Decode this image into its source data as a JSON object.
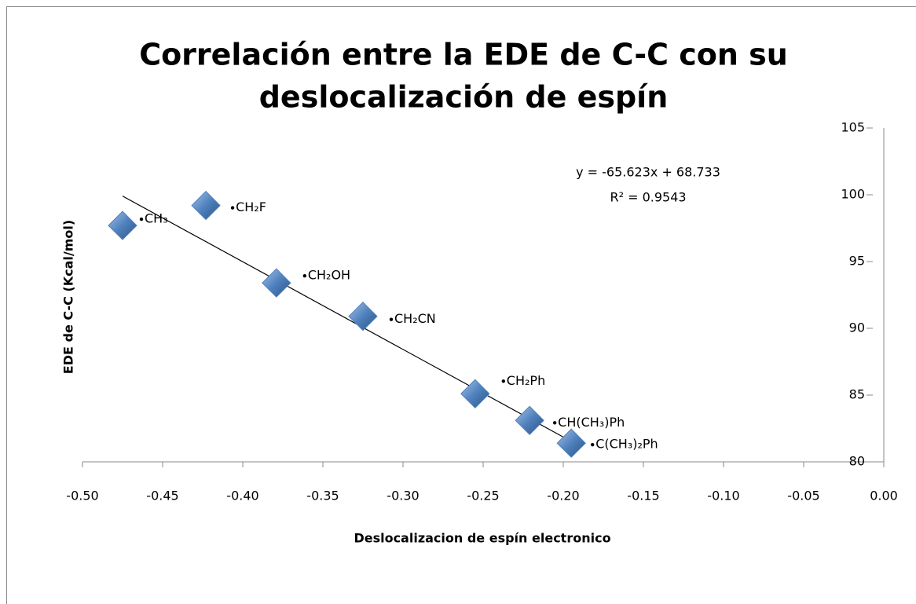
{
  "chart_data": {
    "type": "scatter",
    "title": [
      "Correlación entre la EDE de C-C con su",
      "deslocalización de espín"
    ],
    "x_label": "Deslocalizacion  de espín electronico",
    "y_label": "EDE de C-C (Kcal/mol)",
    "x": [
      -0.475,
      -0.423,
      -0.379,
      -0.325,
      -0.255,
      -0.221,
      -0.195
    ],
    "series": [
      {
        "name": "EDE",
        "color": "#4f81bd",
        "values": [
          97.7,
          99.2,
          93.4,
          90.9,
          85.1,
          83.1,
          81.4
        ]
      }
    ],
    "point_labels": [
      "CH₃",
      "CH₂F",
      "CH₂OH",
      "CH₂CN",
      "CH₂Ph",
      "CH(CH₃)Ph",
      "C(CH₃)₂Ph"
    ],
    "xlim": [
      -0.5,
      0
    ],
    "xticks": [
      {
        "value": -0.5,
        "label": "-0.50"
      },
      {
        "value": -0.45,
        "label": "-0.45"
      },
      {
        "value": -0.4,
        "label": "-0.40"
      },
      {
        "value": -0.35,
        "label": "-0.35"
      },
      {
        "value": -0.3,
        "label": "-0.30"
      },
      {
        "value": -0.25,
        "label": "-0.25"
      },
      {
        "value": -0.2,
        "label": "-0.20"
      },
      {
        "value": -0.15,
        "label": "-0.15"
      },
      {
        "value": -0.1,
        "label": "-0.10"
      },
      {
        "value": -0.05,
        "label": "-0.05"
      },
      {
        "value": 0,
        "label": "0.00"
      }
    ],
    "ylim": [
      80,
      105
    ],
    "yticks": [
      80,
      85,
      90,
      95,
      100,
      105
    ],
    "trendline": {
      "equation": "y = -65.623x + 68.733",
      "r_squared": "R² = 0.9543",
      "slope": -65.623,
      "intercept": 68.733
    }
  }
}
